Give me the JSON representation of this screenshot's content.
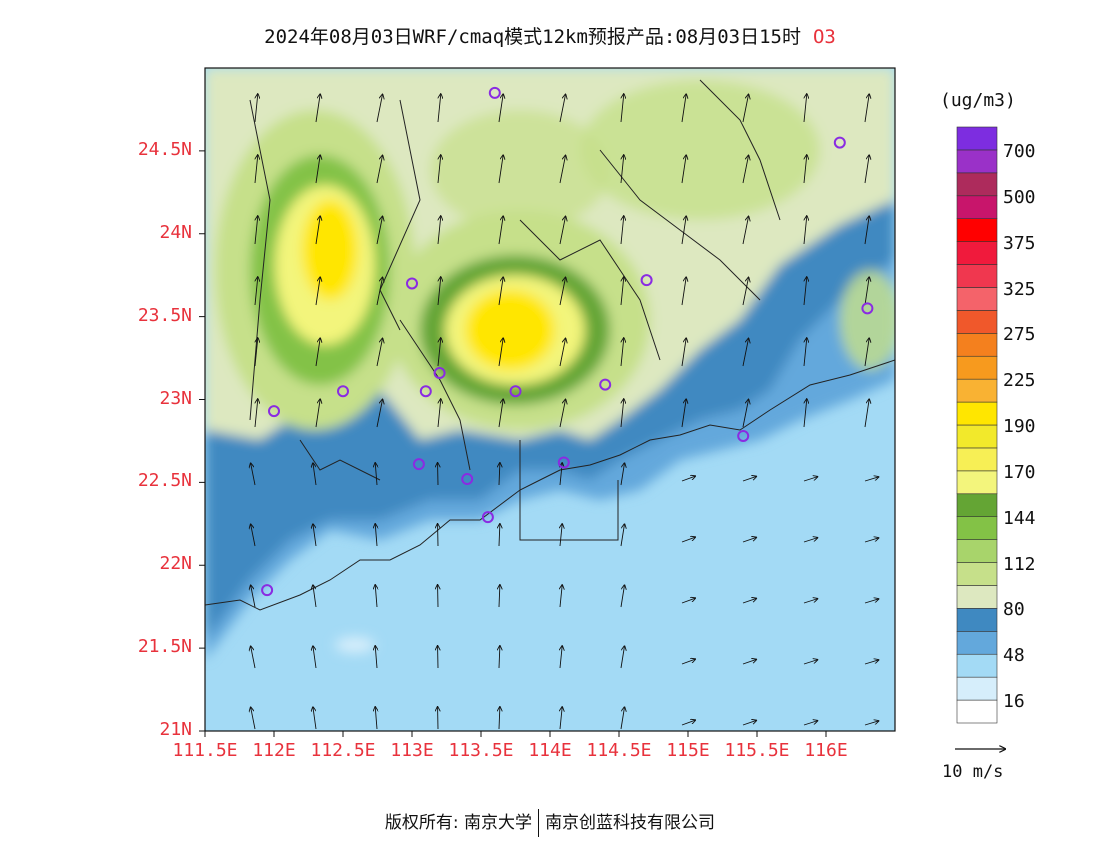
{
  "title": {
    "main": "2024年08月03日WRF/cmaq模式12km预报产品:08月03日15时",
    "species": "O3"
  },
  "axes": {
    "lat_labels": [
      "24.5N",
      "24N",
      "23.5N",
      "23N",
      "22.5N",
      "22N",
      "21.5N",
      "21N"
    ],
    "lon_labels": [
      "111.5E",
      "112E",
      "112.5E",
      "113E",
      "113.5E",
      "114E",
      "114.5E",
      "115E",
      "115.5E",
      "116E"
    ]
  },
  "colorbar": {
    "unit": "(ug/m3)",
    "labels": [
      "700",
      "500",
      "375",
      "325",
      "275",
      "225",
      "190",
      "170",
      "144",
      "112",
      "80",
      "48",
      "16"
    ],
    "colors": [
      "#ffffff",
      "#d6eefb",
      "#a3daf5",
      "#63a8dc",
      "#3f89c1",
      "#dde8c0",
      "#c6e08a",
      "#a8d46b",
      "#83c246",
      "#64a534",
      "#f3f57c",
      "#f7ef55",
      "#f2e92b",
      "#ffe600",
      "#f9b233",
      "#f79a1e",
      "#f4801e",
      "#f0582b",
      "#f4636a",
      "#f0374f",
      "#f01a3c",
      "#ff0000",
      "#c8156b",
      "#ad2b5c",
      "#9a31c8",
      "#7d2de0"
    ],
    "colors_note_top_to_bottom": false
  },
  "wind_reference": {
    "label": "10 m/s"
  },
  "footer": {
    "copyright": "版权所有: 南京大学",
    "company": "南京创蓝科技有限公司"
  },
  "map_data": {
    "extent": {
      "lon": [
        111.5,
        116.5
      ],
      "lat": [
        21.0,
        25.0
      ]
    },
    "stations": [
      [
        113.6,
        24.85
      ],
      [
        116.1,
        24.55
      ],
      [
        113.0,
        23.7
      ],
      [
        114.7,
        23.72
      ],
      [
        116.3,
        23.55
      ],
      [
        112.5,
        23.05
      ],
      [
        113.1,
        23.05
      ],
      [
        113.2,
        23.16
      ],
      [
        113.75,
        23.05
      ],
      [
        114.4,
        23.09
      ],
      [
        112.0,
        22.93
      ],
      [
        113.05,
        22.61
      ],
      [
        113.4,
        22.52
      ],
      [
        114.1,
        22.62
      ],
      [
        115.4,
        22.78
      ],
      [
        113.55,
        22.29
      ],
      [
        111.95,
        21.85
      ]
    ]
  }
}
